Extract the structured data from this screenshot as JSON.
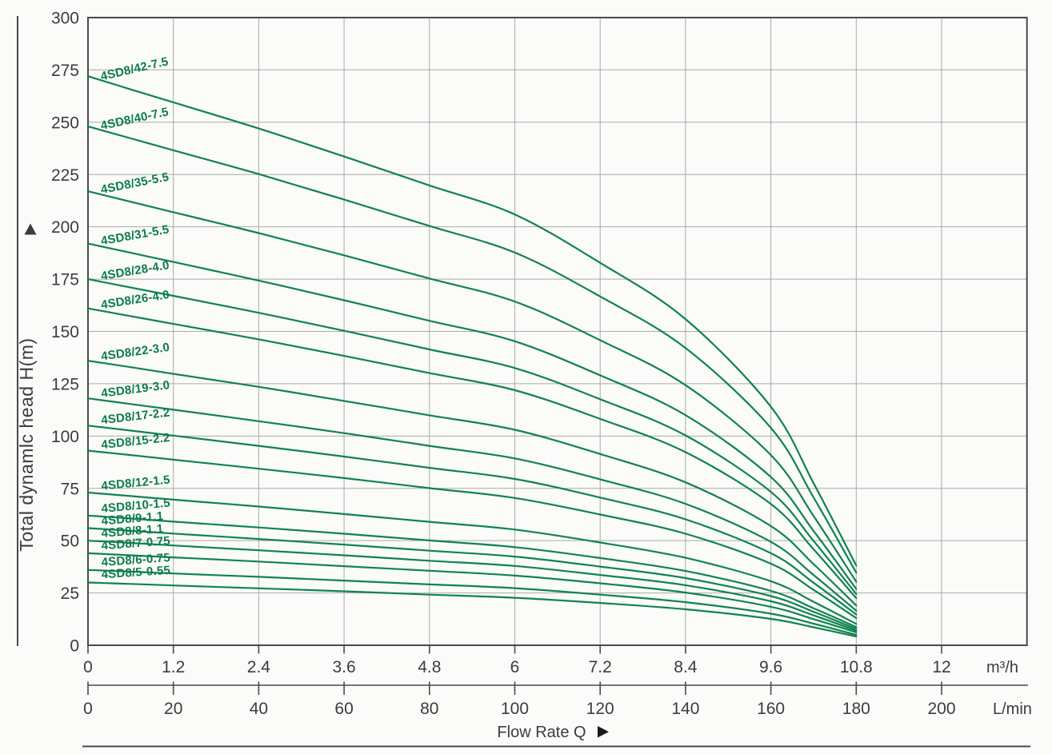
{
  "chart_data": {
    "type": "line",
    "description": "Submersible pump performance curves: total dynamic head vs flow rate for 4SD8 series",
    "y_axis": {
      "label": "Total dynamlc head H(m)",
      "tick_values": [
        0,
        25,
        50,
        75,
        100,
        125,
        150,
        175,
        200,
        225,
        250,
        275,
        300
      ],
      "range": [
        0,
        300
      ],
      "grid": true
    },
    "x_axis_m3h": {
      "unit": "m³/h",
      "tick_values": [
        0,
        1.2,
        2.4,
        3.6,
        4.8,
        6,
        7.2,
        8.4,
        9.6,
        10.8,
        12
      ],
      "tick_labels": [
        "0",
        "1.2",
        "2.4",
        "3.6",
        "4.8",
        "6",
        "7.2",
        "8.4",
        "9.6",
        "10.8",
        "12"
      ],
      "plot_range": [
        0,
        13.2
      ],
      "grid": true
    },
    "x_axis_lmin": {
      "unit": "L/min",
      "tick_values": [
        0,
        20,
        40,
        60,
        80,
        100,
        120,
        140,
        160,
        180,
        200
      ],
      "tick_labels": [
        "0",
        "20",
        "40",
        "60",
        "80",
        "100",
        "120",
        "140",
        "160",
        "180",
        "200"
      ]
    },
    "x_title": "Flow Rate Q",
    "legend_position": "inline-curve-labels",
    "flow_m3h": [
      0,
      0.6,
      1.2,
      2.4,
      3.6,
      4.8,
      6,
      7.2,
      8.4,
      9.6,
      10.2,
      10.8
    ],
    "series": [
      {
        "name": "4SD8/42-7.5",
        "shutoff_head_m": 272,
        "heads_m": [
          272.0,
          265.7,
          259.5,
          247.0,
          233.6,
          219.8,
          205.9,
          182.8,
          155.9,
          114.0,
          77.5,
          38.1
        ]
      },
      {
        "name": "4SD8/40-7.5",
        "shutoff_head_m": 248,
        "heads_m": [
          248.0,
          242.3,
          236.6,
          225.2,
          213.0,
          200.4,
          187.7,
          166.7,
          142.1,
          103.9,
          70.7,
          34.7
        ]
      },
      {
        "name": "4SD8/35-5.5",
        "shutoff_head_m": 217,
        "heads_m": [
          217.0,
          212.0,
          207.0,
          197.0,
          186.4,
          175.3,
          164.3,
          145.8,
          124.3,
          90.9,
          61.8,
          30.4
        ]
      },
      {
        "name": "4SD8/31-5.5",
        "shutoff_head_m": 192,
        "heads_m": [
          192.0,
          187.6,
          183.2,
          174.3,
          164.9,
          155.1,
          145.3,
          129.0,
          110.0,
          80.4,
          54.7,
          26.9
        ]
      },
      {
        "name": "4SD8/28-4.0",
        "shutoff_head_m": 175,
        "heads_m": [
          175.0,
          171.0,
          167.0,
          158.9,
          150.3,
          141.4,
          132.5,
          117.6,
          100.3,
          73.3,
          49.9,
          24.5
        ]
      },
      {
        "name": "4SD8/26-4.0",
        "shutoff_head_m": 161,
        "heads_m": [
          161.0,
          157.3,
          153.6,
          146.2,
          138.3,
          130.1,
          121.9,
          108.2,
          92.3,
          67.5,
          45.9,
          22.5
        ]
      },
      {
        "name": "4SD8/22-3.0",
        "shutoff_head_m": 136,
        "heads_m": [
          136.0,
          132.9,
          129.7,
          123.5,
          116.8,
          109.9,
          103.0,
          91.4,
          77.9,
          57.0,
          38.8,
          19.0
        ]
      },
      {
        "name": "4SD8/19-3.0",
        "shutoff_head_m": 118,
        "heads_m": [
          118.0,
          115.3,
          112.6,
          107.1,
          101.4,
          95.3,
          89.3,
          79.3,
          67.6,
          49.4,
          33.6,
          16.5
        ]
      },
      {
        "name": "4SD8/17-2.2",
        "shutoff_head_m": 105,
        "heads_m": [
          105.0,
          102.6,
          100.2,
          95.3,
          90.2,
          84.8,
          79.5,
          70.6,
          60.2,
          44.0,
          29.9,
          14.7
        ]
      },
      {
        "name": "4SD8/15-2.2",
        "shutoff_head_m": 93,
        "heads_m": [
          93.0,
          90.9,
          88.7,
          84.4,
          79.9,
          75.1,
          70.4,
          62.5,
          53.3,
          39.0,
          26.5,
          13.0
        ]
      },
      {
        "name": "4SD8/12-1.5",
        "shutoff_head_m": 73,
        "heads_m": [
          73.0,
          71.3,
          69.6,
          66.3,
          62.7,
          59.0,
          55.3,
          49.1,
          41.8,
          30.6,
          20.8,
          10.2
        ]
      },
      {
        "name": "4SD8/10-1.5",
        "shutoff_head_m": 62,
        "heads_m": [
          62.0,
          60.6,
          59.1,
          56.3,
          53.3,
          50.1,
          46.9,
          41.7,
          35.5,
          26.0,
          17.7,
          8.7
        ]
      },
      {
        "name": "4SD8/9-1.1",
        "shutoff_head_m": 56,
        "heads_m": [
          56.0,
          54.7,
          53.4,
          50.8,
          48.1,
          45.2,
          42.4,
          37.6,
          32.1,
          23.5,
          16.0,
          7.8
        ]
      },
      {
        "name": "4SD8/8-1.1",
        "shutoff_head_m": 50,
        "heads_m": [
          50.0,
          48.9,
          47.7,
          45.4,
          43.0,
          40.4,
          37.9,
          33.6,
          28.7,
          21.0,
          14.3,
          7.0
        ]
      },
      {
        "name": "4SD8/7-0.75",
        "shutoff_head_m": 44,
        "heads_m": [
          44.0,
          43.0,
          42.0,
          40.0,
          37.8,
          35.6,
          33.3,
          29.6,
          25.2,
          18.4,
          12.5,
          6.2
        ]
      },
      {
        "name": "4SD8/6-0.75",
        "shutoff_head_m": 36,
        "heads_m": [
          36.0,
          35.2,
          34.3,
          32.7,
          30.9,
          29.1,
          27.3,
          24.2,
          20.6,
          15.1,
          10.3,
          5.0
        ]
      },
      {
        "name": "4SD8/5-0.55",
        "shutoff_head_m": 30,
        "heads_m": [
          30.0,
          29.3,
          28.6,
          27.2,
          25.8,
          24.2,
          22.7,
          20.2,
          17.2,
          12.6,
          8.6,
          4.2
        ]
      }
    ],
    "colors": {
      "curve": "#0f8350",
      "curve_label": "#0c7c4a",
      "grid": "#aaaaaa",
      "axis": "#4a4a4a",
      "text": "#3c3c3c",
      "background": "#fbfbf9"
    }
  }
}
